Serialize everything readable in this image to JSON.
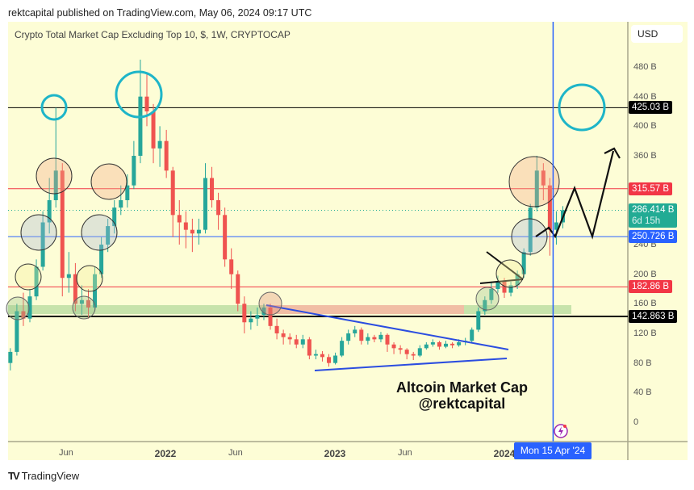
{
  "publisher": "rektcapital published on TradingView.com, May 06, 2024 09:17 UTC",
  "footer_brand": "TradingView",
  "currency": "USD",
  "annotation": {
    "line1": "Altcoin Market Cap",
    "line2": "@rektcapital"
  },
  "crosshair_date": "Mon 15 Apr '24",
  "colors": {
    "background": "#fdfdd6",
    "up": "#26a69a",
    "down": "#ef5350",
    "accent": "#2962ff",
    "circle_cyan": "#1eb5c8"
  },
  "chart_data": {
    "type": "candlestick",
    "title": "Crypto Total Market Cap Excluding Top 10, $, 1W, CRYPTOCAP",
    "ylim": [
      0,
      500
    ],
    "y_unit": "B",
    "y_ticks": [
      "0",
      "40 B",
      "80 B",
      "120 B",
      "160 B",
      "200 B",
      "240 B",
      "360 B",
      "400 B",
      "440 B",
      "480 B"
    ],
    "y_tick_values": [
      0,
      40,
      80,
      120,
      160,
      200,
      240,
      360,
      400,
      440,
      480
    ],
    "x_ticks": [
      {
        "label": "Jun",
        "date": "2021-06-01",
        "year": false
      },
      {
        "label": "2022",
        "date": "2022-01-01",
        "year": true
      },
      {
        "label": "Jun",
        "date": "2022-06-01",
        "year": false
      },
      {
        "label": "2023",
        "date": "2023-01-01",
        "year": true
      },
      {
        "label": "Jun",
        "date": "2023-06-01",
        "year": false
      },
      {
        "label": "2024",
        "date": "2024-01-01",
        "year": true
      }
    ],
    "grid": false,
    "dates": [
      "2021-02-01",
      "2021-02-15",
      "2021-03-01",
      "2021-03-15",
      "2021-03-29",
      "2021-04-12",
      "2021-04-26",
      "2021-05-10",
      "2021-05-24",
      "2021-06-07",
      "2021-06-21",
      "2021-07-05",
      "2021-07-19",
      "2021-08-02",
      "2021-08-16",
      "2021-08-30",
      "2021-09-13",
      "2021-09-27",
      "2021-10-11",
      "2021-10-25",
      "2021-11-08",
      "2021-11-22",
      "2021-12-06",
      "2021-12-20",
      "2022-01-03",
      "2022-01-17",
      "2022-01-31",
      "2022-02-14",
      "2022-02-28",
      "2022-03-14",
      "2022-03-28",
      "2022-04-11",
      "2022-04-25",
      "2022-05-09",
      "2022-05-23",
      "2022-06-06",
      "2022-06-20",
      "2022-07-04",
      "2022-07-18",
      "2022-08-01",
      "2022-08-15",
      "2022-08-29",
      "2022-09-12",
      "2022-09-26",
      "2022-10-10",
      "2022-10-24",
      "2022-11-07",
      "2022-11-21",
      "2022-12-05",
      "2022-12-19",
      "2023-01-02",
      "2023-01-16",
      "2023-01-30",
      "2023-02-13",
      "2023-02-27",
      "2023-03-13",
      "2023-03-27",
      "2023-04-10",
      "2023-04-24",
      "2023-05-08",
      "2023-05-22",
      "2023-06-05",
      "2023-06-19",
      "2023-07-03",
      "2023-07-17",
      "2023-07-31",
      "2023-08-14",
      "2023-08-28",
      "2023-09-11",
      "2023-09-25",
      "2023-10-09",
      "2023-10-23",
      "2023-11-06",
      "2023-11-20",
      "2023-12-04",
      "2023-12-18",
      "2024-01-01",
      "2024-01-15",
      "2024-01-29",
      "2024-02-12",
      "2024-02-26",
      "2024-03-11",
      "2024-03-25",
      "2024-04-08",
      "2024-04-22",
      "2024-05-06"
    ],
    "open": [
      80,
      95,
      150,
      140,
      170,
      210,
      270,
      300,
      340,
      195,
      200,
      160,
      165,
      155,
      200,
      240,
      265,
      290,
      300,
      320,
      360,
      440,
      420,
      370,
      380,
      340,
      280,
      270,
      260,
      255,
      260,
      330,
      300,
      280,
      220,
      200,
      160,
      135,
      140,
      145,
      155,
      130,
      120,
      115,
      112,
      105,
      112,
      90,
      92,
      88,
      80,
      90,
      110,
      120,
      125,
      110,
      115,
      112,
      118,
      105,
      100,
      98,
      92,
      90,
      100,
      105,
      108,
      102,
      106,
      104,
      108,
      110,
      125,
      150,
      165,
      180,
      190,
      175,
      185,
      200,
      230,
      290,
      340,
      320,
      260,
      270
    ],
    "high": [
      100,
      160,
      175,
      180,
      220,
      285,
      330,
      425,
      350,
      230,
      215,
      185,
      180,
      210,
      250,
      275,
      300,
      320,
      335,
      380,
      490,
      470,
      430,
      400,
      395,
      345,
      300,
      285,
      275,
      275,
      350,
      345,
      310,
      290,
      235,
      205,
      170,
      150,
      155,
      160,
      160,
      140,
      125,
      120,
      118,
      118,
      115,
      98,
      96,
      92,
      94,
      115,
      125,
      130,
      128,
      120,
      118,
      122,
      120,
      108,
      104,
      100,
      95,
      104,
      108,
      112,
      110,
      110,
      108,
      112,
      114,
      128,
      155,
      170,
      190,
      198,
      195,
      190,
      205,
      235,
      295,
      360,
      350,
      330,
      285,
      292
    ],
    "low": [
      70,
      90,
      130,
      135,
      165,
      205,
      255,
      290,
      170,
      175,
      150,
      145,
      140,
      150,
      195,
      230,
      255,
      280,
      290,
      315,
      350,
      400,
      350,
      345,
      330,
      250,
      240,
      235,
      230,
      240,
      255,
      290,
      260,
      210,
      180,
      150,
      120,
      125,
      130,
      138,
      125,
      112,
      105,
      105,
      100,
      100,
      85,
      85,
      82,
      75,
      78,
      88,
      105,
      115,
      105,
      105,
      108,
      108,
      95,
      92,
      92,
      85,
      84,
      88,
      98,
      102,
      98,
      100,
      100,
      102,
      104,
      108,
      122,
      145,
      160,
      175,
      168,
      170,
      180,
      195,
      225,
      285,
      300,
      225,
      240,
      262
    ],
    "close": [
      95,
      150,
      140,
      170,
      210,
      270,
      300,
      340,
      195,
      200,
      160,
      165,
      155,
      200,
      240,
      265,
      290,
      300,
      320,
      360,
      440,
      420,
      370,
      380,
      340,
      280,
      270,
      260,
      255,
      260,
      330,
      300,
      280,
      220,
      200,
      160,
      135,
      140,
      145,
      155,
      130,
      120,
      115,
      112,
      105,
      112,
      90,
      92,
      88,
      80,
      90,
      110,
      120,
      125,
      110,
      115,
      112,
      118,
      105,
      100,
      98,
      92,
      90,
      100,
      105,
      108,
      102,
      106,
      104,
      108,
      110,
      125,
      150,
      165,
      180,
      190,
      175,
      185,
      200,
      230,
      290,
      340,
      320,
      260,
      270,
      286.414
    ],
    "levels": [
      {
        "value": 425.03,
        "label": "425.03 B",
        "color": "#000000",
        "style": "thin"
      },
      {
        "value": 315.57,
        "label": "315.57 B",
        "color": "#f23645",
        "style": "thin"
      },
      {
        "value": 286.414,
        "label": "286.414 B",
        "sublabel": "6d 15h",
        "color": "#22ab94",
        "style": "dotted"
      },
      {
        "value": 250.726,
        "label": "250.726 B",
        "color": "#2962ff",
        "style": "thin"
      },
      {
        "value": 182.86,
        "label": "182.86 B",
        "color": "#f23645",
        "style": "thin"
      },
      {
        "value": 142.863,
        "label": "142.863 B",
        "color": "#000000",
        "style": "thick"
      }
    ],
    "vertical_marker": {
      "date": "2024-04-15",
      "color": "#2962ff"
    }
  }
}
